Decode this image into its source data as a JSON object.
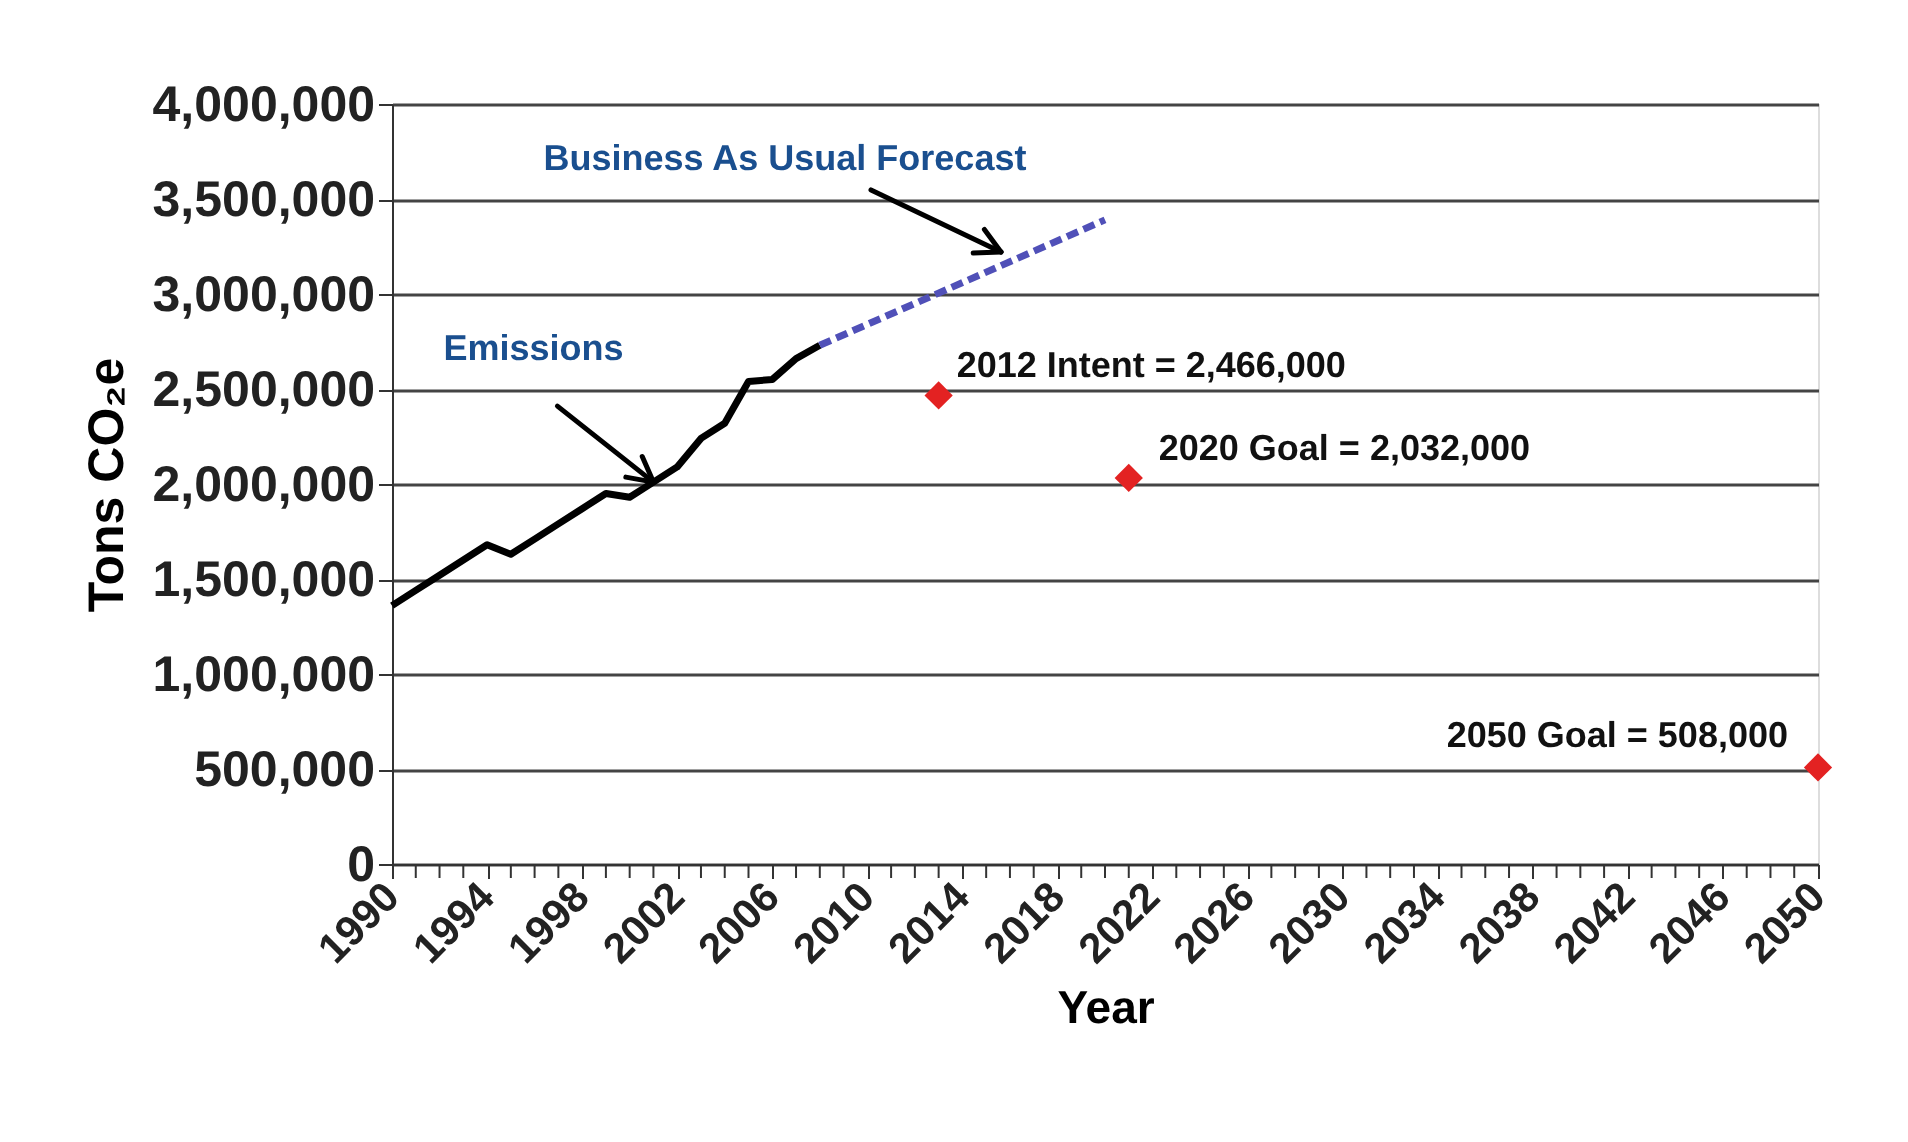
{
  "chart_data": {
    "type": "line",
    "xlabel": "Year",
    "ylabel": "Tons CO₂e",
    "xlim": [
      1990,
      2050
    ],
    "ylim": [
      0,
      4000000
    ],
    "yticks": [
      0,
      {
        "value": 500000,
        "label": "500,000"
      },
      {
        "value": 1000000,
        "label": "1,000,000"
      },
      {
        "value": 1500000,
        "label": "1,500,000"
      },
      {
        "value": 2000000,
        "label": "2,000,000"
      },
      {
        "value": 2500000,
        "label": "2,500,000"
      },
      {
        "value": 3000000,
        "label": "3,000,000"
      },
      {
        "value": 3500000,
        "label": "3,500,000"
      },
      {
        "value": 4000000,
        "label": "4,000,000"
      }
    ],
    "xticks": [
      1990,
      {
        "value": 1991,
        "label": null
      },
      {
        "value": 1992,
        "label": null
      },
      {
        "value": 1993,
        "label": null
      },
      1994,
      {
        "value": 1995,
        "label": null
      },
      {
        "value": 1996,
        "label": null
      },
      {
        "value": 1997,
        "label": null
      },
      1998,
      {
        "value": 1999,
        "label": null
      },
      {
        "value": 2000,
        "label": null
      },
      {
        "value": 2001,
        "label": null
      },
      2002,
      {
        "value": 2003,
        "label": null
      },
      {
        "value": 2004,
        "label": null
      },
      {
        "value": 2005,
        "label": null
      },
      2006,
      {
        "value": 2007,
        "label": null
      },
      {
        "value": 2008,
        "label": null
      },
      {
        "value": 2009,
        "label": null
      },
      2010,
      {
        "value": 2011,
        "label": null
      },
      {
        "value": 2012,
        "label": null
      },
      {
        "value": 2013,
        "label": null
      },
      2014,
      {
        "value": 2015,
        "label": null
      },
      {
        "value": 2016,
        "label": null
      },
      {
        "value": 2017,
        "label": null
      },
      2018,
      {
        "value": 2019,
        "label": null
      },
      {
        "value": 2020,
        "label": null
      },
      {
        "value": 2021,
        "label": null
      },
      2022,
      {
        "value": 2023,
        "label": null
      },
      {
        "value": 2024,
        "label": null
      },
      {
        "value": 2025,
        "label": null
      },
      2026,
      {
        "value": 2027,
        "label": null
      },
      {
        "value": 2028,
        "label": null
      },
      {
        "value": 2029,
        "label": null
      },
      2030,
      {
        "value": 2031,
        "label": null
      },
      {
        "value": 2032,
        "label": null
      },
      {
        "value": 2033,
        "label": null
      },
      2034,
      {
        "value": 2035,
        "label": null
      },
      {
        "value": 2036,
        "label": null
      },
      {
        "value": 2037,
        "label": null
      },
      2038,
      {
        "value": 2039,
        "label": null
      },
      {
        "value": 2040,
        "label": null
      },
      {
        "value": 2041,
        "label": null
      },
      2042,
      {
        "value": 2043,
        "label": null
      },
      {
        "value": 2044,
        "label": null
      },
      {
        "value": 2045,
        "label": null
      },
      2046,
      {
        "value": 2047,
        "label": null
      },
      {
        "value": 2048,
        "label": null
      },
      {
        "value": 2049,
        "label": null
      },
      2050
    ],
    "grid": "y",
    "series": [
      {
        "name": "Emissions",
        "type": "line",
        "line_style": "solid",
        "marker": "none",
        "color": "#000000",
        "x": [
          1990,
          1991,
          1992,
          1993,
          1994,
          1995,
          1996,
          1997,
          1998,
          1999,
          2000,
          2001,
          2002,
          2003,
          2004,
          2005,
          2006,
          2007,
          2008
        ],
        "values": [
          1360000,
          1440000,
          1520000,
          1600000,
          1680000,
          1630000,
          1710000,
          1790000,
          1870000,
          1950000,
          1930000,
          2010000,
          2090000,
          2240000,
          2320000,
          2540000,
          2550000,
          2660000,
          2730000
        ]
      },
      {
        "name": "Business As Usual Forecast",
        "type": "line",
        "line_style": "dashed",
        "marker": "none",
        "color": "#5050b8",
        "x": [
          2008,
          2020
        ],
        "values": [
          2730000,
          3390000
        ]
      },
      {
        "type": "scatter",
        "marker": "diamond",
        "color": "#e32222",
        "x": [
          2013,
          2021,
          2050
        ],
        "values": [
          2466000,
          2032000,
          508000
        ]
      }
    ],
    "annotations": [
      {
        "text": "2012 Intent = 2,466,000",
        "x": 2013,
        "y": 2466000
      },
      {
        "text": "2020 Goal = 2,032,000",
        "x": 2021,
        "y": 2032000
      },
      {
        "text": "2050 Goal = 508,000",
        "x": 2050,
        "y": 508000
      }
    ]
  }
}
